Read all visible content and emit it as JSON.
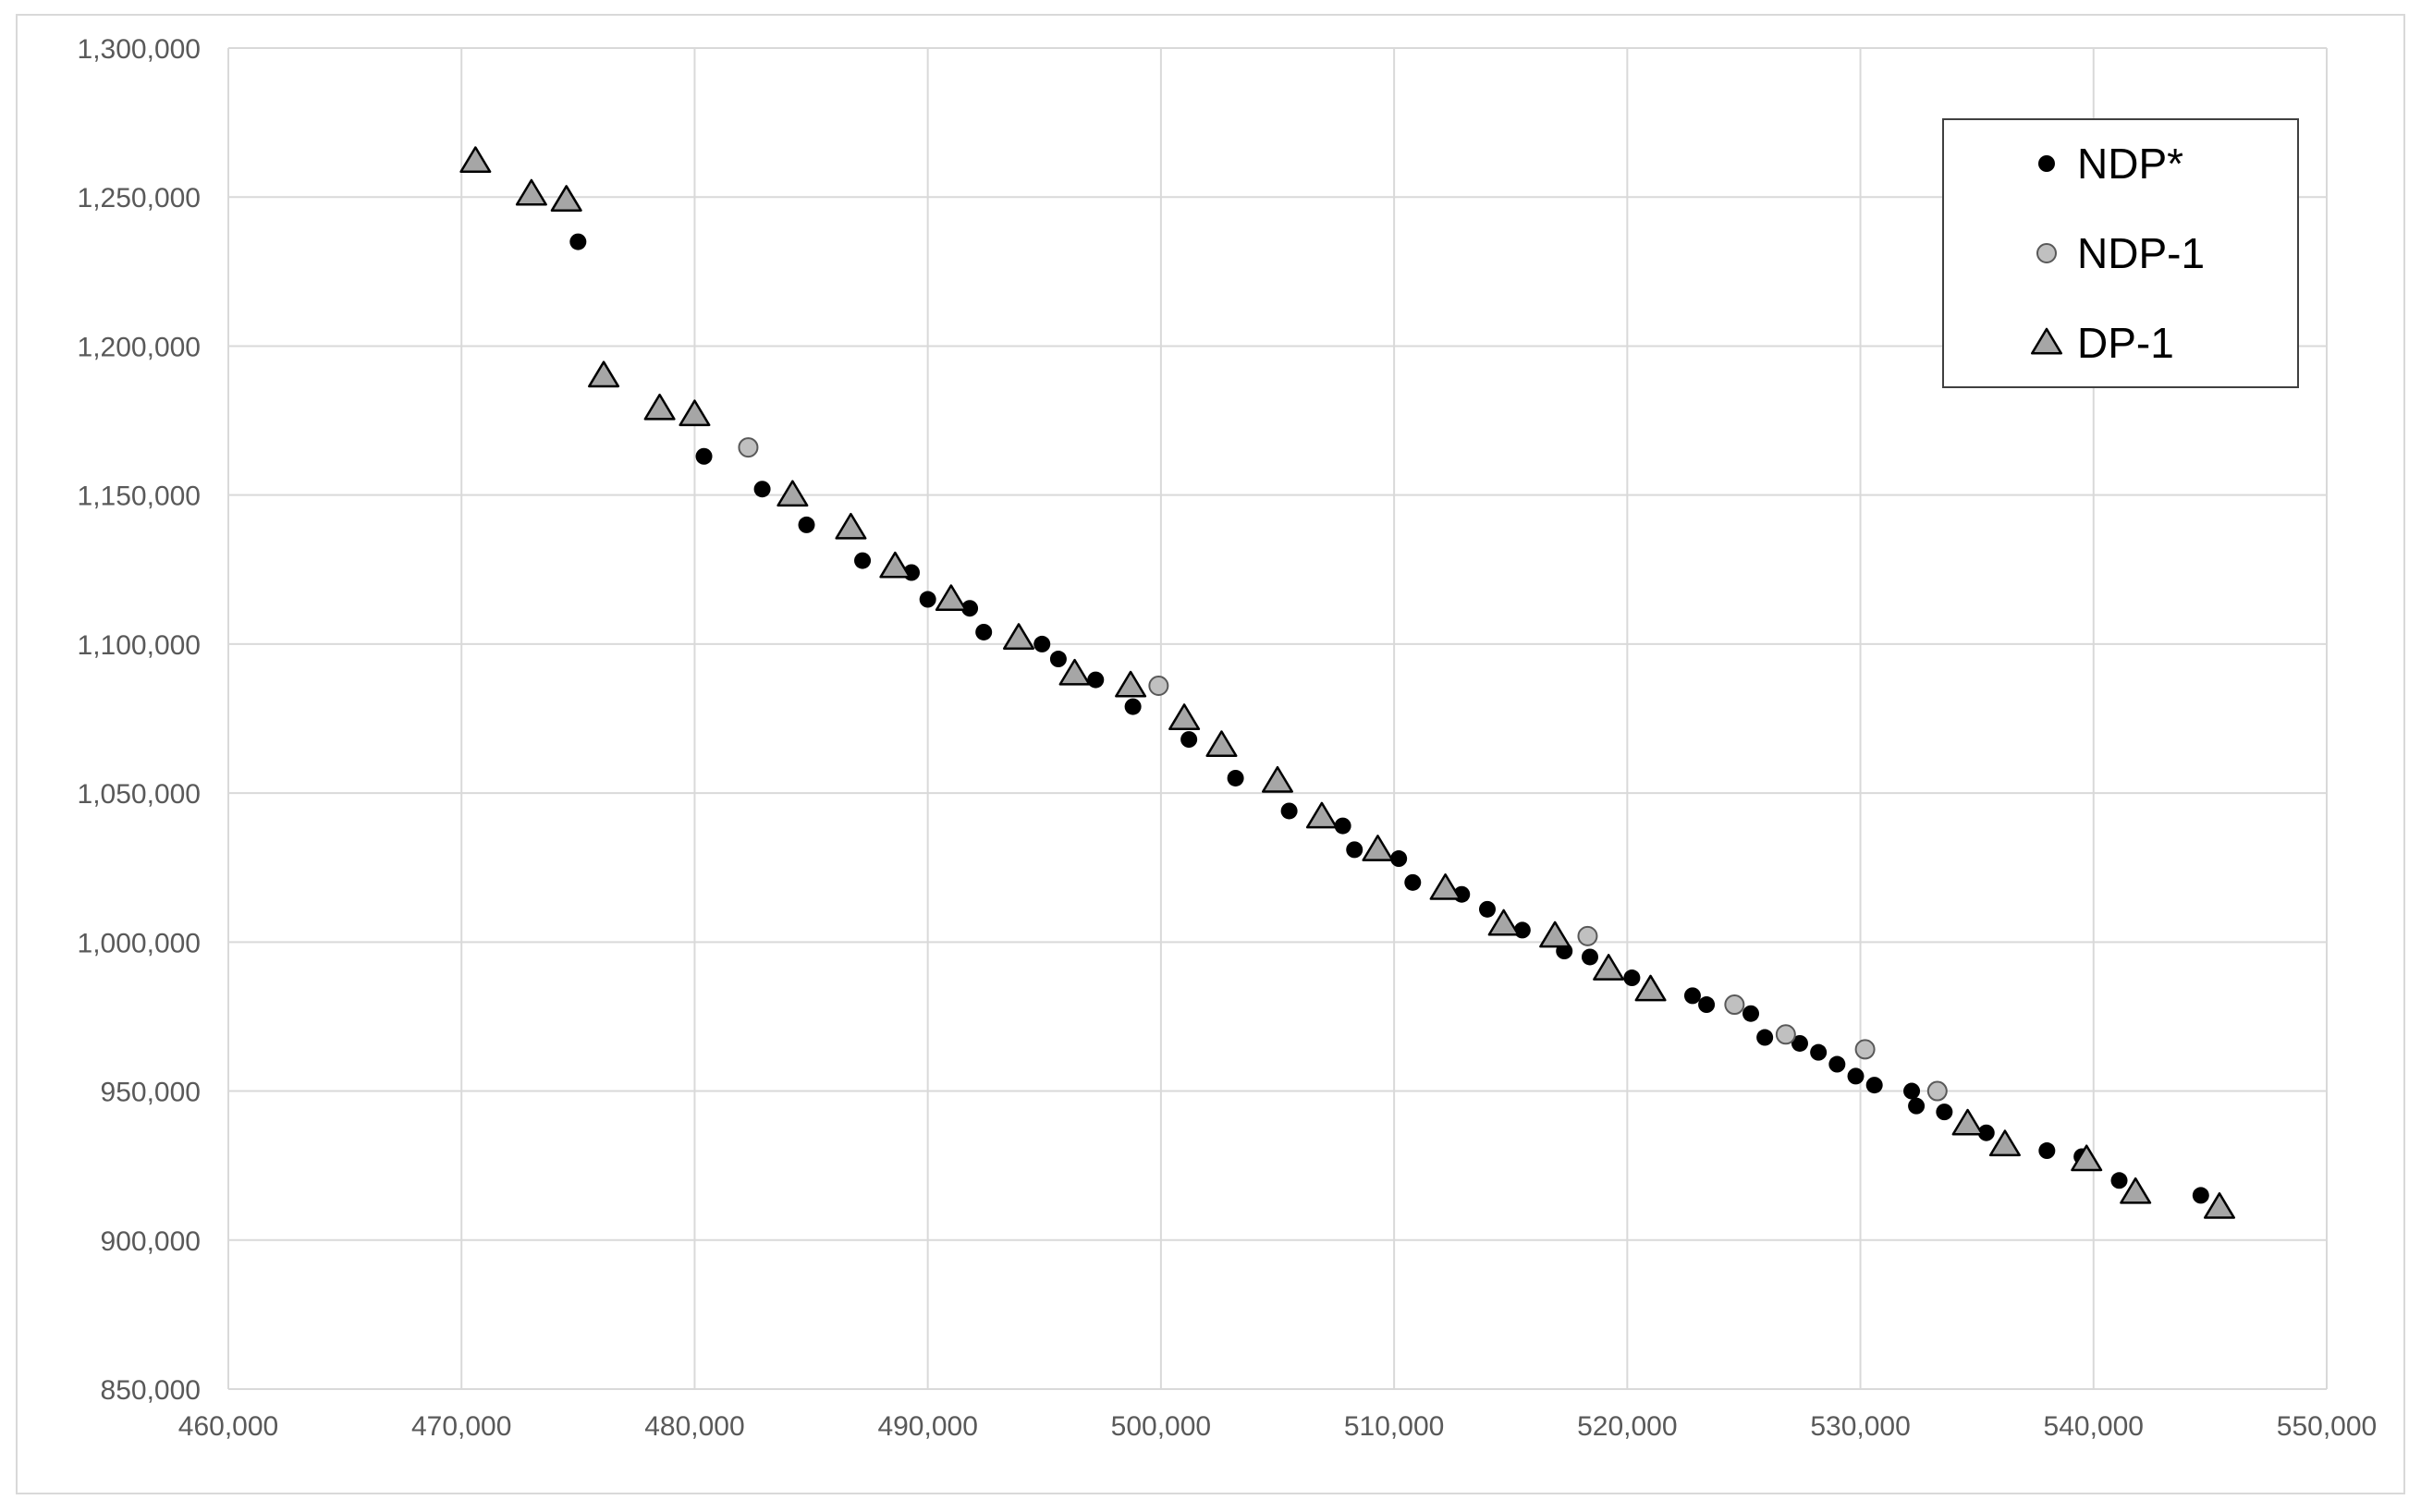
{
  "chart_data": {
    "type": "scatter",
    "title": "",
    "xlabel": "",
    "ylabel": "",
    "xlim": [
      460000,
      550000
    ],
    "ylim": [
      850000,
      1300000
    ],
    "x_ticks": [
      460000,
      470000,
      480000,
      490000,
      500000,
      510000,
      520000,
      530000,
      540000,
      550000
    ],
    "y_ticks": [
      850000,
      900000,
      950000,
      1000000,
      1050000,
      1100000,
      1150000,
      1200000,
      1250000,
      1300000
    ],
    "x_tick_labels": [
      "460,000",
      "470,000",
      "480,000",
      "490,000",
      "500,000",
      "510,000",
      "520,000",
      "530,000",
      "540,000",
      "550,000"
    ],
    "y_tick_labels": [
      "850,000",
      "900,000",
      "950,000",
      "1,000,000",
      "1,050,000",
      "1,100,000",
      "1,150,000",
      "1,200,000",
      "1,250,000",
      "1,300,000"
    ],
    "grid": true,
    "legend_position": "top-right",
    "series": [
      {
        "name": "NDP*",
        "marker": "circle",
        "color": "#000000",
        "points": [
          [
            475000,
            1235000
          ],
          [
            480400,
            1163000
          ],
          [
            482900,
            1152000
          ],
          [
            484800,
            1140000
          ],
          [
            487200,
            1128000
          ],
          [
            489300,
            1124000
          ],
          [
            490000,
            1115000
          ],
          [
            491800,
            1112000
          ],
          [
            492400,
            1104000
          ],
          [
            494900,
            1100000
          ],
          [
            495600,
            1095000
          ],
          [
            497200,
            1088000
          ],
          [
            498800,
            1079000
          ],
          [
            501200,
            1068000
          ],
          [
            503200,
            1055000
          ],
          [
            505500,
            1044000
          ],
          [
            507800,
            1039000
          ],
          [
            508300,
            1031000
          ],
          [
            510200,
            1028000
          ],
          [
            510800,
            1020000
          ],
          [
            512900,
            1016000
          ],
          [
            514000,
            1011000
          ],
          [
            515500,
            1004000
          ],
          [
            517300,
            997000
          ],
          [
            518400,
            995000
          ],
          [
            520200,
            988000
          ],
          [
            522800,
            982000
          ],
          [
            523400,
            979000
          ],
          [
            525300,
            976000
          ],
          [
            525900,
            968000
          ],
          [
            527400,
            966000
          ],
          [
            528200,
            963000
          ],
          [
            529000,
            959000
          ],
          [
            529800,
            955000
          ],
          [
            530600,
            952000
          ],
          [
            532200,
            950000
          ],
          [
            532400,
            945000
          ],
          [
            533600,
            943000
          ],
          [
            535400,
            936000
          ],
          [
            538000,
            930000
          ],
          [
            539500,
            928000
          ],
          [
            541100,
            920000
          ],
          [
            544600,
            915000
          ]
        ]
      },
      {
        "name": "NDP-1",
        "marker": "circle",
        "color": "#c0c0c0",
        "points": [
          [
            482300,
            1166000
          ],
          [
            499900,
            1086000
          ],
          [
            518300,
            1002000
          ],
          [
            524600,
            979000
          ],
          [
            526800,
            969000
          ],
          [
            530200,
            964000
          ],
          [
            533300,
            950000
          ]
        ]
      },
      {
        "name": "DP-1",
        "marker": "triangle",
        "color": "#a6a6a6",
        "points": [
          [
            470600,
            1262000
          ],
          [
            473000,
            1251000
          ],
          [
            474500,
            1249000
          ],
          [
            476100,
            1190000
          ],
          [
            478500,
            1179000
          ],
          [
            480000,
            1177000
          ],
          [
            484200,
            1150000
          ],
          [
            486700,
            1139000
          ],
          [
            488600,
            1126000
          ],
          [
            491000,
            1115000
          ],
          [
            493900,
            1102000
          ],
          [
            496300,
            1090000
          ],
          [
            498700,
            1086000
          ],
          [
            501000,
            1075000
          ],
          [
            502600,
            1066000
          ],
          [
            505000,
            1054000
          ],
          [
            506900,
            1042000
          ],
          [
            509300,
            1031000
          ],
          [
            512200,
            1018000
          ],
          [
            514700,
            1006000
          ],
          [
            516900,
            1002000
          ],
          [
            519200,
            991000
          ],
          [
            521000,
            984000
          ],
          [
            534600,
            939000
          ],
          [
            536200,
            932000
          ],
          [
            539700,
            927000
          ],
          [
            541800,
            916000
          ],
          [
            545400,
            911000
          ]
        ]
      }
    ]
  }
}
